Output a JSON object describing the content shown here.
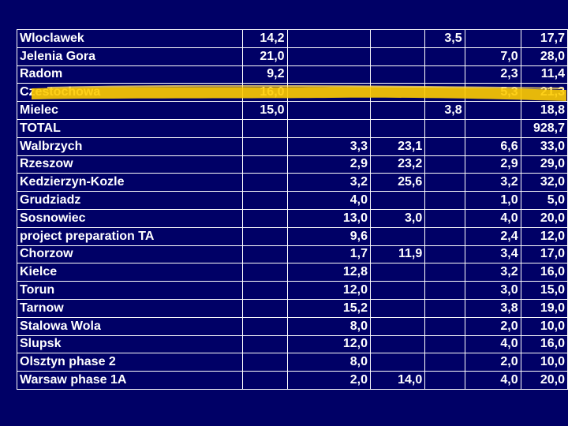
{
  "slide": {
    "background_color": "#000066",
    "text_color": "#ffffff",
    "highlight_color": "#ffcc00"
  },
  "columns": [
    "name",
    "c1",
    "c2",
    "c3",
    "c4",
    "c5",
    "c6"
  ],
  "rows": [
    {
      "name": "Wloclawek",
      "c1": "14,2",
      "c2": "",
      "c3": "",
      "c4": "3,5",
      "c5": "",
      "c6": "17,7"
    },
    {
      "name": "Jelenia Gora",
      "c1": "21,0",
      "c2": "",
      "c3": "",
      "c4": "",
      "c5": "7,0",
      "c6": "28,0"
    },
    {
      "name": "Radom",
      "c1": "9,2",
      "c2": "",
      "c3": "",
      "c4": "",
      "c5": "2,3",
      "c6": "11,4"
    },
    {
      "name": "Czestochowa",
      "c1": "16,0",
      "c2": "",
      "c3": "",
      "c4": "",
      "c5": "5,3",
      "c6": "21,3"
    },
    {
      "name": "Mielec",
      "c1": "15,0",
      "c2": "",
      "c3": "",
      "c4": "3,8",
      "c5": "",
      "c6": "18,8"
    },
    {
      "name": "TOTAL",
      "c1": "",
      "c2": "",
      "c3": "",
      "c4": "",
      "c5": "",
      "c6": "928,7"
    },
    {
      "name": "Walbrzych",
      "c1": "",
      "c2": "3,3",
      "c3": "23,1",
      "c4": "",
      "c5": "6,6",
      "c6": "33,0"
    },
    {
      "name": "Rzeszow",
      "c1": "",
      "c2": "2,9",
      "c3": "23,2",
      "c4": "",
      "c5": "2,9",
      "c6": "29,0"
    },
    {
      "name": "Kedzierzyn-Kozle",
      "c1": "",
      "c2": "3,2",
      "c3": "25,6",
      "c4": "",
      "c5": "3,2",
      "c6": "32,0"
    },
    {
      "name": "Grudziadz",
      "c1": "",
      "c2": "4,0",
      "c3": "",
      "c4": "",
      "c5": "1,0",
      "c6": "5,0"
    },
    {
      "name": "Sosnowiec",
      "c1": "",
      "c2": "13,0",
      "c3": "3,0",
      "c4": "",
      "c5": "4,0",
      "c6": "20,0"
    },
    {
      "name": "project preparation TA",
      "c1": "",
      "c2": "9,6",
      "c3": "",
      "c4": "",
      "c5": "2,4",
      "c6": "12,0"
    },
    {
      "name": "Chorzow",
      "c1": "",
      "c2": "1,7",
      "c3": "11,9",
      "c4": "",
      "c5": "3,4",
      "c6": "17,0"
    },
    {
      "name": "Kielce",
      "c1": "",
      "c2": "12,8",
      "c3": "",
      "c4": "",
      "c5": "3,2",
      "c6": "16,0"
    },
    {
      "name": "Torun",
      "c1": "",
      "c2": "12,0",
      "c3": "",
      "c4": "",
      "c5": "3,0",
      "c6": "15,0"
    },
    {
      "name": "Tarnow",
      "c1": "",
      "c2": "15,2",
      "c3": "",
      "c4": "",
      "c5": "3,8",
      "c6": "19,0"
    },
    {
      "name": "Stalowa Wola",
      "c1": "",
      "c2": "8,0",
      "c3": "",
      "c4": "",
      "c5": "2,0",
      "c6": "10,0"
    },
    {
      "name": "Slupsk",
      "c1": "",
      "c2": "12,0",
      "c3": "",
      "c4": "",
      "c5": "4,0",
      "c6": "16,0"
    },
    {
      "name": "Olsztyn phase 2",
      "c1": "",
      "c2": "8,0",
      "c3": "",
      "c4": "",
      "c5": "2,0",
      "c6": "10,0"
    },
    {
      "name": "Warsaw phase 1A",
      "c1": "",
      "c2": "2,0",
      "c3": "14,0",
      "c4": "",
      "c5": "4,0",
      "c6": "20,0"
    }
  ]
}
